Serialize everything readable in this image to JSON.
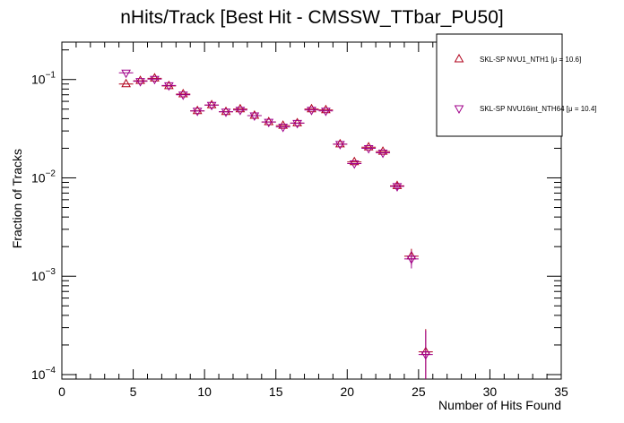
{
  "chart_data": {
    "type": "scatter",
    "title": "nHits/Track [Best Hit - CMSSW_TTbar_PU50]",
    "xlabel": "Number of Hits Found",
    "ylabel": "Fraction of Tracks",
    "xlim": [
      0,
      35
    ],
    "ylim": [
      9e-05,
      0.24
    ],
    "yscale": "log",
    "x_ticks": [
      0,
      5,
      10,
      15,
      20,
      25,
      30,
      35
    ],
    "x_tick_labels": [
      "0",
      "5",
      "10",
      "15",
      "20",
      "25",
      "30",
      "35"
    ],
    "y_ticks": [
      0.0001,
      0.001,
      0.01,
      0.1
    ],
    "y_tick_labels": [
      {
        "base": "10",
        "exp": "−4"
      },
      {
        "base": "10",
        "exp": "−3"
      },
      {
        "base": "10",
        "exp": "−2"
      },
      {
        "base": "10",
        "exp": "−1"
      }
    ],
    "legend_position": "top-right",
    "series": [
      {
        "name": "SKL-SP NVU1_NTH1 [μ = 10.6]",
        "marker": "triangle-up",
        "color": "#b0001a",
        "points": [
          {
            "x": 4.5,
            "y": 0.09
          },
          {
            "x": 5.5,
            "y": 0.097
          },
          {
            "x": 6.5,
            "y": 0.103
          },
          {
            "x": 7.5,
            "y": 0.086
          },
          {
            "x": 8.5,
            "y": 0.071
          },
          {
            "x": 9.5,
            "y": 0.048
          },
          {
            "x": 10.5,
            "y": 0.055
          },
          {
            "x": 11.5,
            "y": 0.047
          },
          {
            "x": 12.5,
            "y": 0.05
          },
          {
            "x": 13.5,
            "y": 0.043
          },
          {
            "x": 14.5,
            "y": 0.037
          },
          {
            "x": 15.5,
            "y": 0.034
          },
          {
            "x": 16.5,
            "y": 0.036
          },
          {
            "x": 17.5,
            "y": 0.05
          },
          {
            "x": 18.5,
            "y": 0.049
          },
          {
            "x": 19.5,
            "y": 0.022
          },
          {
            "x": 20.5,
            "y": 0.0145
          },
          {
            "x": 21.5,
            "y": 0.0205
          },
          {
            "x": 22.5,
            "y": 0.0185
          },
          {
            "x": 23.5,
            "y": 0.0083
          },
          {
            "x": 24.5,
            "y": 0.0016
          },
          {
            "x": 25.5,
            "y": 0.00017
          }
        ],
        "yerr": [
          0,
          0,
          0,
          0,
          0,
          0,
          0,
          0,
          0,
          0,
          0,
          0,
          0,
          0,
          0,
          0,
          0,
          0,
          0,
          0.0006,
          0.0003,
          0.00012
        ]
      },
      {
        "name": "SKL-SP NVU16int_NTH64 [μ = 10.4]",
        "marker": "triangle-down",
        "color": "#a0008a",
        "points": [
          {
            "x": 4.5,
            "y": 0.117
          },
          {
            "x": 5.5,
            "y": 0.096
          },
          {
            "x": 6.5,
            "y": 0.101
          },
          {
            "x": 7.5,
            "y": 0.087
          },
          {
            "x": 8.5,
            "y": 0.07
          },
          {
            "x": 9.5,
            "y": 0.048
          },
          {
            "x": 10.5,
            "y": 0.055
          },
          {
            "x": 11.5,
            "y": 0.047
          },
          {
            "x": 12.5,
            "y": 0.049
          },
          {
            "x": 13.5,
            "y": 0.043
          },
          {
            "x": 14.5,
            "y": 0.037
          },
          {
            "x": 15.5,
            "y": 0.033
          },
          {
            "x": 16.5,
            "y": 0.036
          },
          {
            "x": 17.5,
            "y": 0.049
          },
          {
            "x": 18.5,
            "y": 0.048
          },
          {
            "x": 19.5,
            "y": 0.022
          },
          {
            "x": 20.5,
            "y": 0.014
          },
          {
            "x": 21.5,
            "y": 0.02
          },
          {
            "x": 22.5,
            "y": 0.018
          },
          {
            "x": 23.5,
            "y": 0.0082
          },
          {
            "x": 24.5,
            "y": 0.0015
          },
          {
            "x": 25.5,
            "y": 0.00016
          }
        ],
        "yerr": [
          0,
          0,
          0,
          0,
          0,
          0,
          0,
          0,
          0,
          0,
          0,
          0,
          0,
          0,
          0,
          0,
          0,
          0,
          0,
          0.0006,
          0.0003,
          0.00012
        ]
      }
    ]
  }
}
